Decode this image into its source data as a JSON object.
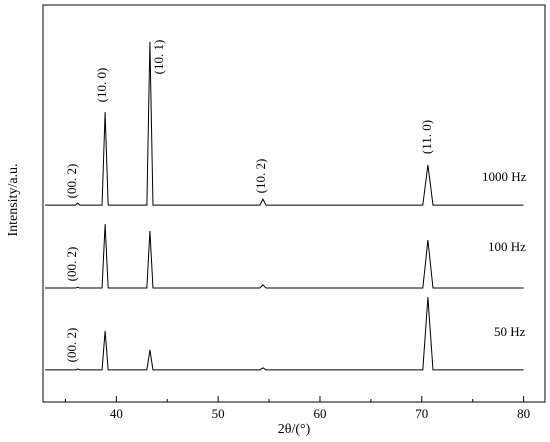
{
  "chart_data": {
    "type": "line",
    "x_label": "2θ/(°)",
    "y_label": "Intensity/a.u.",
    "x": [
      33,
      36,
      36.2,
      36.4,
      38.6,
      38.9,
      39.2,
      43.0,
      43.3,
      43.6,
      54.1,
      54.4,
      54.7,
      70.1,
      70.6,
      71.1,
      80
    ],
    "series": [
      {
        "name": "1000 Hz",
        "color": "#000000",
        "values": [
          49.6,
          49.6,
          50.1,
          49.6,
          49.6,
          73.0,
          49.6,
          49.6,
          90.7,
          49.6,
          49.6,
          51.1,
          49.6,
          49.6,
          59.7,
          49.6,
          49.6
        ]
      },
      {
        "name": "100 Hz",
        "color": "#000000",
        "values": [
          28.7,
          28.7,
          28.9,
          28.7,
          28.7,
          44.8,
          28.7,
          28.7,
          43.1,
          28.7,
          28.7,
          29.5,
          28.7,
          28.7,
          40.8,
          28.7,
          28.7
        ]
      },
      {
        "name": "50 Hz",
        "color": "#000000",
        "values": [
          8.1,
          8.1,
          8.3,
          8.1,
          8.1,
          17.9,
          8.1,
          8.1,
          13.1,
          8.1,
          8.1,
          8.6,
          8.1,
          8.1,
          26.4,
          8.1,
          8.1
        ]
      }
    ],
    "annotations": [
      "(00. 2)",
      "(00. 2)",
      "(00. 2)",
      "(10. 0)",
      "(10. 1)",
      "(10. 2)",
      "(11. 0)"
    ],
    "xlim": [
      32.8,
      82.1
    ],
    "ylim": [
      0,
      100
    ],
    "xticks": [
      40,
      50,
      60,
      70,
      80
    ],
    "xminorticks": [
      35,
      45,
      55,
      65,
      75
    ],
    "grid": false
  }
}
